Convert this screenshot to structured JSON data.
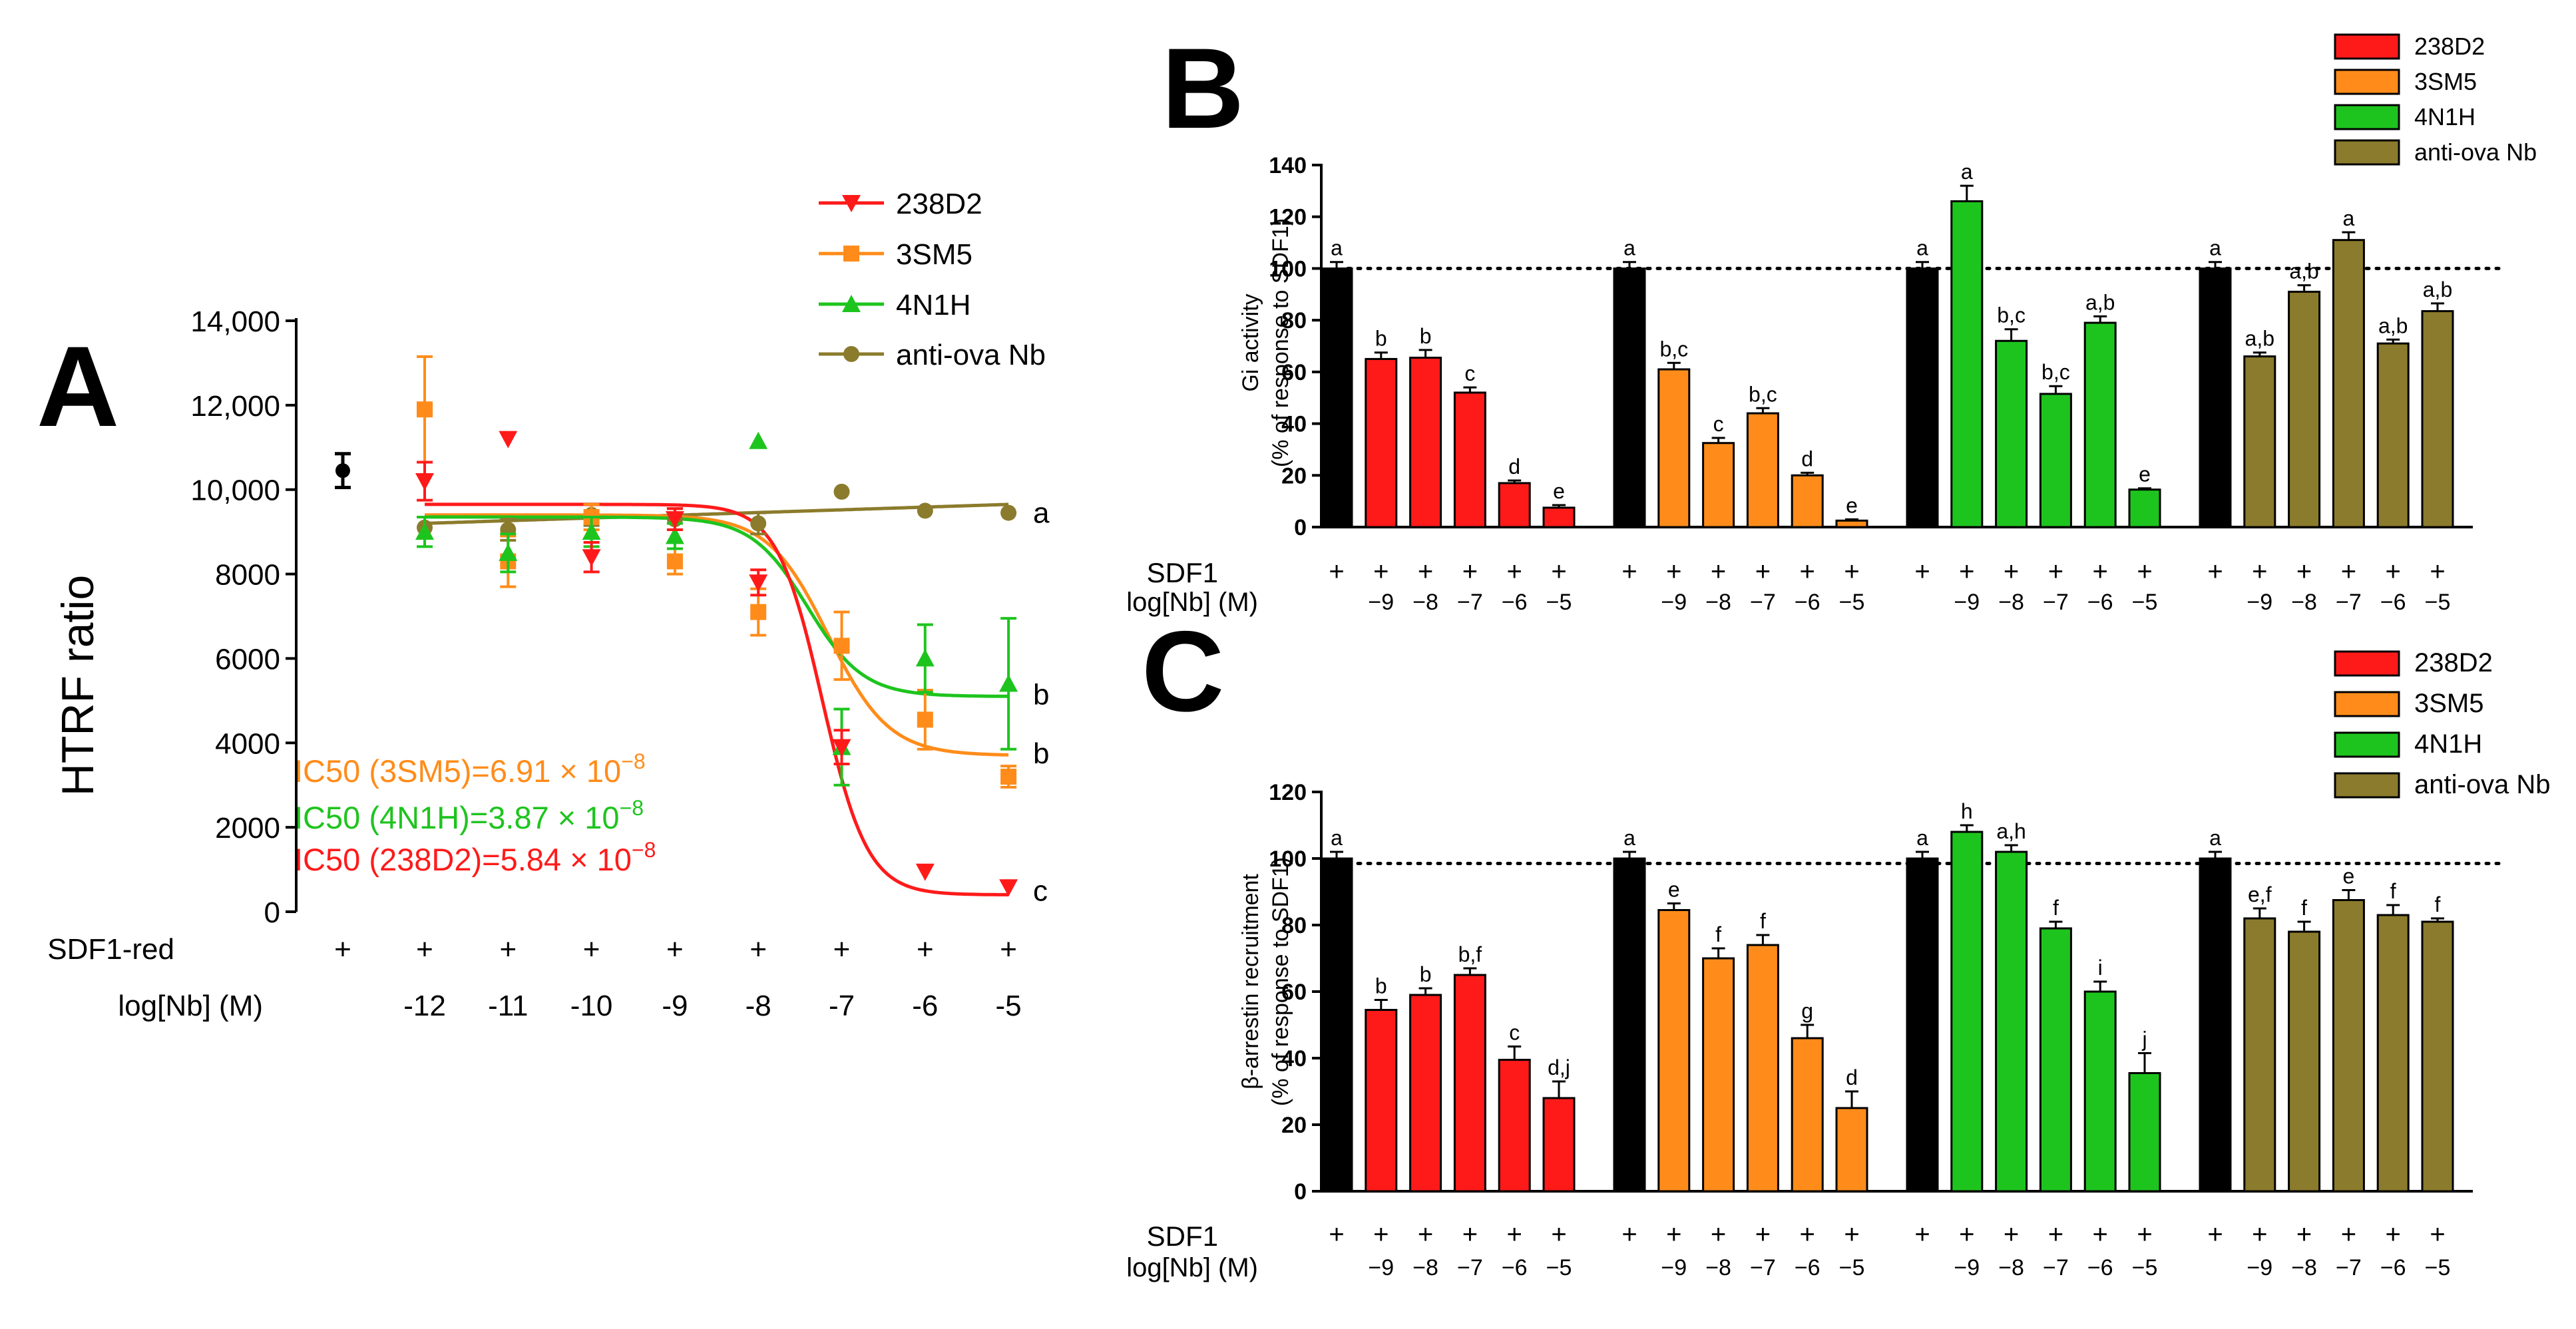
{
  "chart_data": [
    {
      "panel": "A",
      "type": "scatter",
      "ylabel": "HTRF ratio",
      "ylim": [
        0,
        14000
      ],
      "yticks": [
        "0",
        "2000",
        "4000",
        "6000",
        "8000",
        "10,000",
        "12,000",
        "14,000"
      ],
      "xrow1_label": "SDF1-red",
      "xrow2_label": "log[Nb] (M)",
      "xcats": [
        "",
        "-12",
        "-11",
        "-10",
        "-9",
        "-8",
        "-7",
        "-6",
        "-5"
      ],
      "xlog": [
        null,
        -12,
        -11,
        -10,
        -9,
        -8,
        -7,
        -6,
        -5
      ],
      "plus": [
        "+",
        "+",
        "+",
        "+",
        "+",
        "+",
        "+",
        "+",
        "+"
      ],
      "control": {
        "value": 10450,
        "err": 400
      },
      "series": [
        {
          "name": "238D2",
          "color": "#ff1a1a",
          "marker": "tri-down",
          "points": [
            [
              -12,
              10200,
              450
            ],
            [
              -11,
              11200,
              0
            ],
            [
              -10,
              8400,
              350
            ],
            [
              -9,
              9300,
              250
            ],
            [
              -8,
              7800,
              300
            ],
            [
              -7,
              3900,
              400
            ],
            [
              -6,
              950,
              0
            ],
            [
              -5,
              580,
              0
            ]
          ],
          "fit": {
            "top": 9650,
            "bottom": 400,
            "logEC50": -7.234,
            "hill": 1.6
          }
        },
        {
          "name": "3SM5",
          "color": "#ff8c1a",
          "marker": "square",
          "points": [
            [
              -12,
              11900,
              1250
            ],
            [
              -11,
              8300,
              600
            ],
            [
              -10,
              9350,
              300
            ],
            [
              -9,
              8300,
              300
            ],
            [
              -8,
              7100,
              550
            ],
            [
              -7,
              6300,
              800
            ],
            [
              -6,
              4550,
              700
            ],
            [
              -5,
              3200,
              250
            ]
          ],
          "fit": {
            "top": 9400,
            "bottom": 3700,
            "logEC50": -7.16,
            "hill": 1.2
          }
        },
        {
          "name": "4N1H",
          "color": "#1ec41e",
          "marker": "tri-up",
          "points": [
            [
              -12,
              9000,
              350
            ],
            [
              -11,
              8500,
              450
            ],
            [
              -10,
              9000,
              350
            ],
            [
              -9,
              8900,
              300
            ],
            [
              -8,
              11150,
              0
            ],
            [
              -7,
              3900,
              900
            ],
            [
              -6,
              6000,
              800
            ],
            [
              -5,
              5400,
              1550
            ]
          ],
          "fit": {
            "top": 9350,
            "bottom": 5100,
            "logEC50": -7.41,
            "hill": 1.3
          }
        },
        {
          "name": "anti-ova Nb",
          "color": "#8b7b2c",
          "marker": "circle",
          "points": [
            [
              -12,
              9100,
              250
            ],
            [
              -11,
              9050,
              250
            ],
            [
              -10,
              9400,
              250
            ],
            [
              -9,
              9300,
              250
            ],
            [
              -8,
              9200,
              250
            ],
            [
              -7,
              9950,
              0
            ],
            [
              -6,
              9500,
              0
            ],
            [
              -5,
              9450,
              0
            ]
          ],
          "fit": {
            "linear": [
              9200,
              9650
            ]
          }
        }
      ],
      "letters": [
        "a",
        "b",
        "b",
        "c"
      ],
      "ic50": [
        {
          "text": "IC50 (3SM5)=6.91 × 10",
          "exp": "−8",
          "color": "#ff8c1a"
        },
        {
          "text": "IC50 (4N1H)=3.87 × 10",
          "exp": "−8",
          "color": "#1ec41e"
        },
        {
          "text": "IC50 (238D2)=5.84 × 10",
          "exp": "−8",
          "color": "#ff1a1a"
        }
      ]
    },
    {
      "panel": "B",
      "type": "bar",
      "ylabel_line1": "Gi activity",
      "ylabel_line2": "(% of response to SDF1)",
      "ylim": [
        0,
        140
      ],
      "yticks": [
        "0",
        "20",
        "40",
        "60",
        "80",
        "100",
        "120",
        "140"
      ],
      "reference_line": 100,
      "xrow1_label": "SDF1",
      "xrow2_label": "log[Nb] (M)",
      "group_labels": [
        "",
        "−9",
        "−8",
        "−7",
        "−6",
        "−5"
      ],
      "groups": [
        {
          "series": "238D2",
          "color": "#ff1a1a",
          "values": [
            100,
            65,
            65.5,
            52,
            17,
            7.5
          ],
          "errors": [
            2.5,
            2.5,
            3,
            2,
            1,
            1
          ],
          "letters": [
            "a",
            "b",
            "b",
            "c",
            "d",
            "e"
          ]
        },
        {
          "series": "3SM5",
          "color": "#ff8c1a",
          "values": [
            100,
            61,
            32.5,
            44,
            20,
            2.5
          ],
          "errors": [
            2.5,
            2.5,
            2,
            2,
            1,
            0.5
          ],
          "letters": [
            "a",
            "b,c",
            "c",
            "b,c",
            "d",
            "e"
          ]
        },
        {
          "series": "4N1H",
          "color": "#1ec41e",
          "values": [
            100,
            126,
            72,
            51.5,
            79,
            14.5
          ],
          "errors": [
            2.5,
            6,
            4.5,
            3,
            2.5,
            0.5
          ],
          "letters": [
            "a",
            "a",
            "b,c",
            "b,c",
            "a,b",
            "e"
          ]
        },
        {
          "series": "anti-ova Nb",
          "color": "#8b7b2c",
          "values": [
            100,
            66,
            91,
            111,
            71,
            83.5
          ],
          "errors": [
            2.5,
            1.5,
            2.5,
            3,
            1.5,
            3
          ],
          "letters": [
            "a",
            "a,b",
            "a,b",
            "a",
            "a,b",
            "a,b"
          ]
        }
      ],
      "legend": [
        "238D2",
        "3SM5",
        "4N1H",
        "anti-ova Nb"
      ]
    },
    {
      "panel": "C",
      "type": "bar",
      "ylabel_line1": "β-arrestin recruitment",
      "ylabel_line2": "(% of response to SDF1)",
      "ylim": [
        0,
        120
      ],
      "yticks": [
        "0",
        "20",
        "40",
        "60",
        "80",
        "100",
        "120"
      ],
      "reference_line": 98.5,
      "xrow1_label": "SDF1",
      "xrow2_label": "log[Nb] (M)",
      "group_labels": [
        "",
        "−9",
        "−8",
        "−7",
        "−6",
        "−5"
      ],
      "groups": [
        {
          "series": "238D2",
          "color": "#ff1a1a",
          "values": [
            100,
            54.5,
            59,
            65,
            39.5,
            28
          ],
          "errors": [
            2,
            3,
            2,
            2,
            4,
            5
          ],
          "letters": [
            "a",
            "b",
            "b",
            "b,f",
            "c",
            "d,j"
          ]
        },
        {
          "series": "3SM5",
          "color": "#ff8c1a",
          "values": [
            100,
            84.5,
            70,
            74,
            46,
            25
          ],
          "errors": [
            2,
            2,
            3,
            3,
            4,
            5
          ],
          "letters": [
            "a",
            "e",
            "f",
            "f",
            "g",
            "d"
          ]
        },
        {
          "series": "4N1H",
          "color": "#1ec41e",
          "values": [
            100,
            108,
            102,
            79,
            60,
            35.5
          ],
          "errors": [
            2,
            2,
            2,
            2,
            3,
            6
          ],
          "letters": [
            "a",
            "h",
            "a,h",
            "f",
            "i",
            "j"
          ]
        },
        {
          "series": "anti-ova Nb",
          "color": "#8b7b2c",
          "values": [
            100,
            82,
            78,
            87.5,
            83,
            81
          ],
          "errors": [
            2,
            3,
            3,
            3,
            3,
            1
          ],
          "letters": [
            "a",
            "e,f",
            "f",
            "e",
            "f",
            "f"
          ]
        }
      ],
      "legend": [
        "238D2",
        "3SM5",
        "4N1H",
        "anti-ova Nb"
      ]
    }
  ]
}
